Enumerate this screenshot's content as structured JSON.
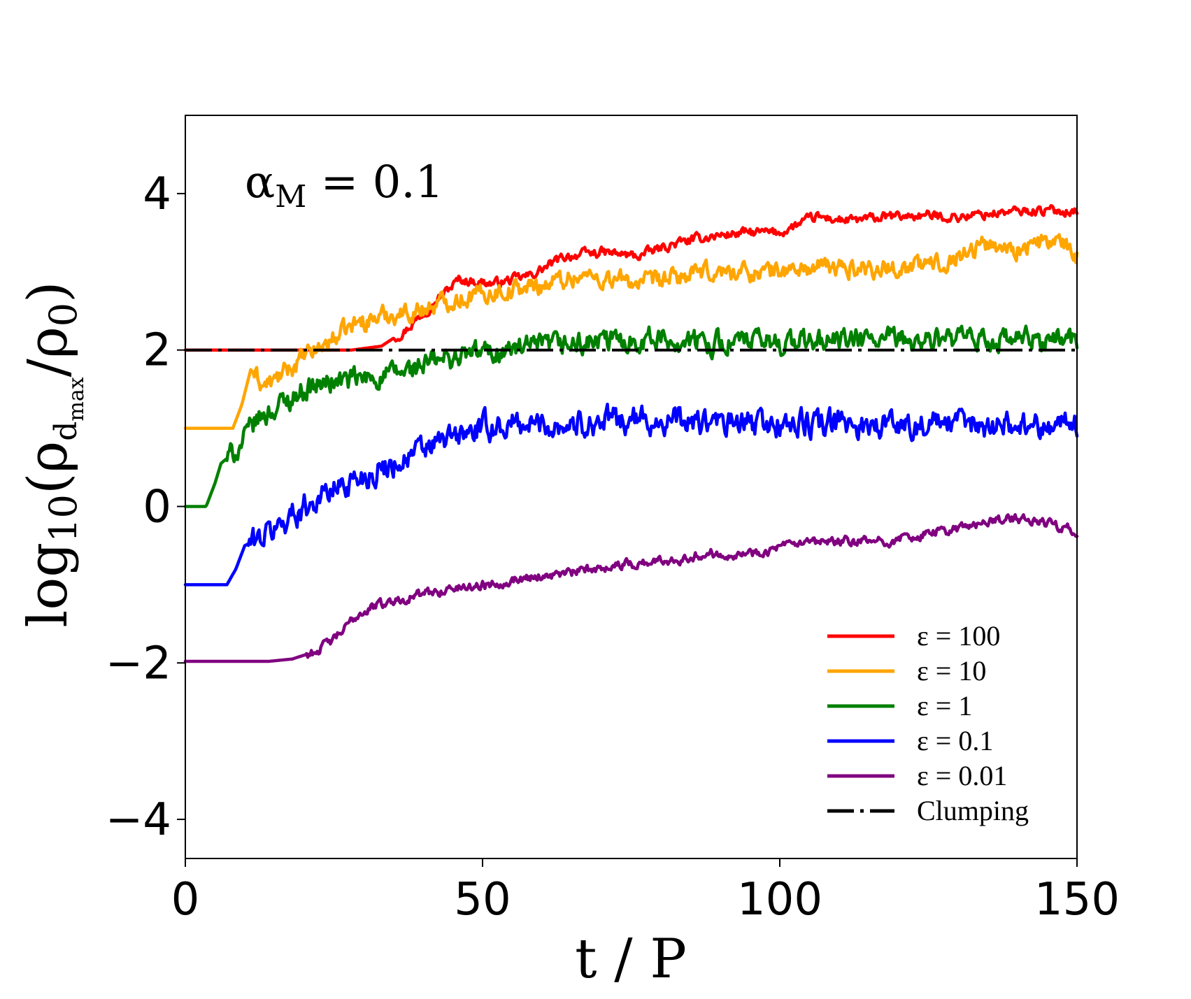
{
  "chart_data": {
    "type": "line",
    "annotation": {
      "symbol": "α",
      "subscript": "M",
      "rest": " = 0.1"
    },
    "xlabel": "t / P",
    "ylabel": {
      "prefix": "log",
      "prefix_sub": "10",
      "open": "(ρ",
      "sub_d": "d",
      "sub_max": "max",
      "close": "/ρ",
      "close_sub": "0",
      "end": ")"
    },
    "xlim": [
      0,
      150
    ],
    "ylim": [
      -4.5,
      5
    ],
    "xticks": [
      0,
      50,
      100,
      150
    ],
    "xtick_labels": [
      "0",
      "50",
      "100",
      "150"
    ],
    "yticks": [
      4,
      2,
      0,
      -2,
      -4
    ],
    "ytick_labels": [
      "4",
      "2",
      "0",
      "−2",
      "−4"
    ],
    "legend_position": "bottom-right",
    "series": [
      {
        "name": "ε = 100",
        "color": "#ff0000",
        "noise": 0.05,
        "points": [
          [
            0,
            2.0
          ],
          [
            28,
            2.0
          ],
          [
            33,
            2.05
          ],
          [
            37,
            2.25
          ],
          [
            41,
            2.55
          ],
          [
            46,
            2.9
          ],
          [
            52,
            2.85
          ],
          [
            58,
            2.95
          ],
          [
            64,
            3.2
          ],
          [
            70,
            3.25
          ],
          [
            76,
            3.2
          ],
          [
            82,
            3.35
          ],
          [
            88,
            3.45
          ],
          [
            94,
            3.5
          ],
          [
            100,
            3.5
          ],
          [
            106,
            3.7
          ],
          [
            112,
            3.65
          ],
          [
            118,
            3.7
          ],
          [
            124,
            3.72
          ],
          [
            130,
            3.7
          ],
          [
            136,
            3.75
          ],
          [
            142,
            3.78
          ],
          [
            150,
            3.78
          ]
        ]
      },
      {
        "name": "ε = 10",
        "color": "#ffa500",
        "noise": 0.1,
        "points": [
          [
            0,
            1.0
          ],
          [
            8,
            1.0
          ],
          [
            9.5,
            1.3
          ],
          [
            11,
            1.75
          ],
          [
            13,
            1.55
          ],
          [
            15,
            1.6
          ],
          [
            19,
            1.85
          ],
          [
            24,
            2.1
          ],
          [
            29,
            2.35
          ],
          [
            34,
            2.45
          ],
          [
            39,
            2.5
          ],
          [
            45,
            2.65
          ],
          [
            52,
            2.75
          ],
          [
            58,
            2.8
          ],
          [
            66,
            2.95
          ],
          [
            72,
            2.9
          ],
          [
            78,
            2.85
          ],
          [
            84,
            2.95
          ],
          [
            90,
            3.0
          ],
          [
            98,
            3.0
          ],
          [
            106,
            3.05
          ],
          [
            112,
            3.05
          ],
          [
            120,
            3.05
          ],
          [
            126,
            3.1
          ],
          [
            130,
            3.2
          ],
          [
            134,
            3.35
          ],
          [
            140,
            3.3
          ],
          [
            146,
            3.4
          ],
          [
            150,
            3.2
          ]
        ]
      },
      {
        "name": "ε = 1",
        "color": "#008000",
        "noise": 0.12,
        "points": [
          [
            0,
            0.0
          ],
          [
            3.5,
            0.0
          ],
          [
            5,
            0.3
          ],
          [
            6,
            0.55
          ],
          [
            9,
            0.75
          ],
          [
            12,
            1.1
          ],
          [
            16,
            1.3
          ],
          [
            20,
            1.5
          ],
          [
            25,
            1.6
          ],
          [
            30,
            1.62
          ],
          [
            36,
            1.7
          ],
          [
            42,
            1.85
          ],
          [
            48,
            1.95
          ],
          [
            55,
            2.0
          ],
          [
            62,
            2.05
          ],
          [
            70,
            2.1
          ],
          [
            78,
            2.15
          ],
          [
            86,
            2.1
          ],
          [
            94,
            2.1
          ],
          [
            102,
            2.1
          ],
          [
            110,
            2.12
          ],
          [
            118,
            2.12
          ],
          [
            126,
            2.12
          ],
          [
            134,
            2.12
          ],
          [
            142,
            2.12
          ],
          [
            150,
            2.15
          ]
        ]
      },
      {
        "name": "ε = 0.1",
        "color": "#0000ff",
        "noise": 0.14,
        "points": [
          [
            0,
            -1.0
          ],
          [
            7,
            -1.0
          ],
          [
            8.5,
            -0.8
          ],
          [
            10,
            -0.5
          ],
          [
            14,
            -0.35
          ],
          [
            18,
            -0.1
          ],
          [
            22,
            0.1
          ],
          [
            27,
            0.3
          ],
          [
            32,
            0.45
          ],
          [
            38,
            0.65
          ],
          [
            44,
            0.85
          ],
          [
            50,
            1.0
          ],
          [
            56,
            1.05
          ],
          [
            64,
            1.05
          ],
          [
            72,
            1.1
          ],
          [
            80,
            1.1
          ],
          [
            90,
            1.05
          ],
          [
            100,
            1.05
          ],
          [
            110,
            1.05
          ],
          [
            120,
            1.05
          ],
          [
            130,
            1.05
          ],
          [
            140,
            1.05
          ],
          [
            150,
            1.05
          ]
        ]
      },
      {
        "name": "ε = 0.01",
        "color": "#800080",
        "noise": 0.05,
        "points": [
          [
            0,
            -1.98
          ],
          [
            14,
            -1.98
          ],
          [
            18,
            -1.95
          ],
          [
            22,
            -1.85
          ],
          [
            25,
            -1.7
          ],
          [
            27,
            -1.55
          ],
          [
            29,
            -1.38
          ],
          [
            32,
            -1.27
          ],
          [
            38,
            -1.15
          ],
          [
            45,
            -1.05
          ],
          [
            52,
            -0.98
          ],
          [
            58,
            -0.9
          ],
          [
            65,
            -0.85
          ],
          [
            72,
            -0.75
          ],
          [
            80,
            -0.7
          ],
          [
            88,
            -0.6
          ],
          [
            95,
            -0.6
          ],
          [
            102,
            -0.5
          ],
          [
            110,
            -0.45
          ],
          [
            118,
            -0.45
          ],
          [
            125,
            -0.35
          ],
          [
            132,
            -0.25
          ],
          [
            138,
            -0.15
          ],
          [
            144,
            -0.2
          ],
          [
            150,
            -0.3
          ]
        ]
      },
      {
        "name": "Clumping",
        "color": "#000000",
        "dashed": true,
        "noise": 0,
        "points": [
          [
            0,
            2.0
          ],
          [
            150,
            2.0
          ]
        ]
      }
    ]
  }
}
